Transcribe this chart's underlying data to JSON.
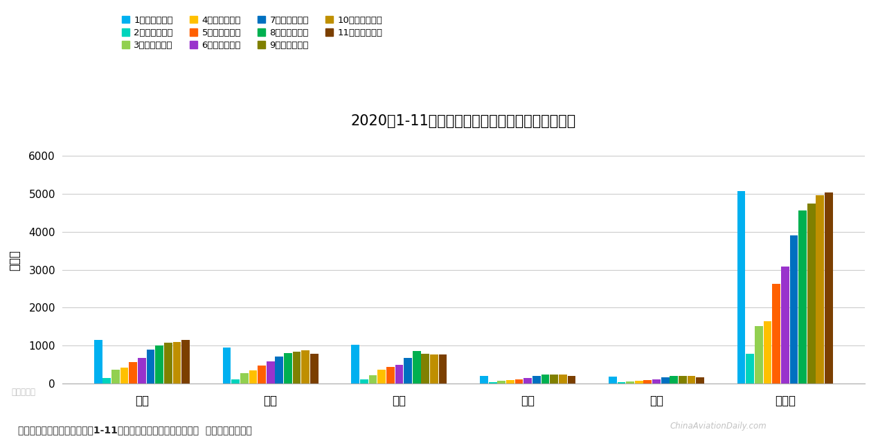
{
  "title": "2020年1-11月部分航司和全民航旅客运输量统计表",
  "ylabel": "万人次",
  "categories": [
    "南航",
    "国航",
    "东航",
    "春秋",
    "吉祥",
    "全民航"
  ],
  "months": [
    "1月旅客运输量",
    "2月旅客运输量",
    "3月旅客运输量",
    "4月旅客运输量",
    "5月旅客运输量",
    "6月旅客运输量",
    "7月旅客运输量",
    "8月旅客运输量",
    "9月旅客运输量",
    "10月旅客运输量",
    "11月旅客运输量"
  ],
  "colors": [
    "#00B0F0",
    "#00D4BC",
    "#92D050",
    "#FFC000",
    "#FF6000",
    "#9933CC",
    "#0070C0",
    "#00B050",
    "#808000",
    "#BF8F00",
    "#7B3F00"
  ],
  "data": {
    "南航": [
      1150,
      145,
      375,
      415,
      570,
      685,
      895,
      1005,
      1085,
      1105,
      1150
    ],
    "国航": [
      945,
      120,
      285,
      350,
      475,
      580,
      720,
      800,
      840,
      870,
      780
    ],
    "东航": [
      1025,
      120,
      230,
      360,
      435,
      490,
      685,
      855,
      780,
      760,
      760
    ],
    "春秋": [
      200,
      40,
      70,
      90,
      110,
      145,
      205,
      235,
      240,
      240,
      200
    ],
    "吉祥": [
      190,
      40,
      60,
      80,
      100,
      120,
      170,
      200,
      210,
      210,
      175
    ],
    "全民航": [
      5060,
      795,
      1520,
      1650,
      2620,
      3085,
      3910,
      4560,
      4750,
      4955,
      5030
    ]
  },
  "ylim": [
    0,
    6500
  ],
  "yticks": [
    0,
    1000,
    2000,
    3000,
    4000,
    5000,
    6000
  ],
  "footnote": "备注说明：数据来源于各航司1-11月主要运营数据报告及民航局。  制图：民航资源网",
  "watermark_left": "民航资源网",
  "watermark_right": "ChinaAviationDaily.com",
  "background_color": "#FFFFFF"
}
